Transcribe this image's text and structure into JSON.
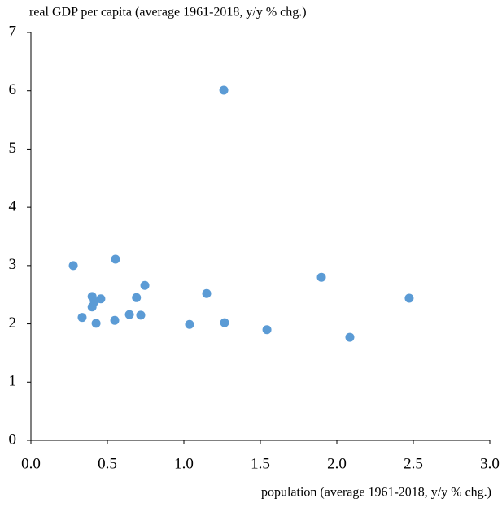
{
  "chart_data": {
    "type": "scatter",
    "y_label": "real GDP per capita (average 1961-2018,  y/y % chg.)",
    "x_label": "population  (average 1961-2018,  y/y % chg.)",
    "color": "#5b9bd5",
    "x": [
      0.277,
      0.553,
      0.745,
      0.4,
      0.4,
      0.457,
      0.415,
      0.335,
      0.426,
      0.548,
      0.644,
      0.69,
      0.718,
      1.037,
      1.149,
      1.261,
      1.266,
      1.543,
      1.899,
      2.085,
      2.473
    ],
    "values": [
      3.0,
      3.11,
      2.66,
      2.47,
      2.29,
      2.43,
      2.38,
      2.11,
      2.01,
      2.06,
      2.16,
      2.45,
      2.15,
      1.99,
      2.52,
      6.01,
      2.02,
      1.9,
      2.8,
      1.77,
      2.44
    ],
    "xlim": [
      0,
      3.0
    ],
    "ylim": [
      0,
      7
    ],
    "xticks": [
      {
        "value": 0,
        "label": "0.0"
      },
      {
        "value": 0.5,
        "label": "0.5"
      },
      {
        "value": 1,
        "label": "1.0"
      },
      {
        "value": 1.5,
        "label": "1.5"
      },
      {
        "value": 2,
        "label": "2.0"
      },
      {
        "value": 2.5,
        "label": "2.5"
      },
      {
        "value": 3,
        "label": "3.0"
      }
    ],
    "yticks": [
      0,
      1,
      2,
      3,
      4,
      5,
      6,
      7
    ],
    "grid": false
  }
}
